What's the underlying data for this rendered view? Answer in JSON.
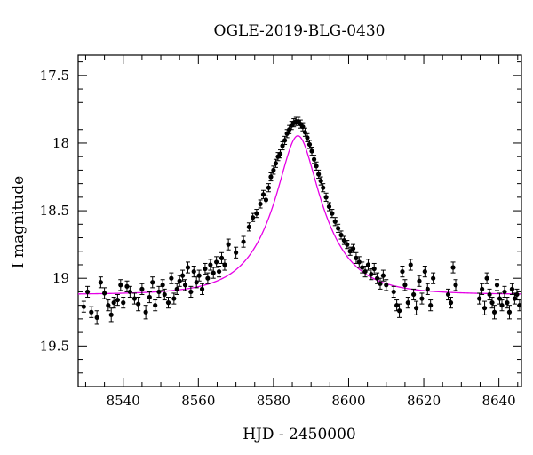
{
  "chart_data": {
    "type": "scatter",
    "title": "OGLE-2019-BLG-0430",
    "xlabel": "HJD - 2450000",
    "ylabel": "I magnitude",
    "xlim": [
      8528,
      8646
    ],
    "ylim": [
      19.8,
      17.35
    ],
    "y_inverted": true,
    "grid": false,
    "xticks": [
      8540,
      8560,
      8580,
      8600,
      8620,
      8640
    ],
    "yticks": [
      17.5,
      18,
      18.5,
      19,
      19.5
    ],
    "xtick_labels": [
      "8540",
      "8560",
      "8580",
      "8600",
      "8620",
      "8640"
    ],
    "ytick_labels": [
      "17.5",
      "18",
      "18.5",
      "19",
      "19.5"
    ],
    "model": {
      "name": "",
      "color": "#e600e6",
      "t0": 8586.5,
      "tE": 13.0,
      "u0": 0.355,
      "baseline_mag": 19.12
    },
    "series": [
      {
        "name": "",
        "color": "#000000",
        "points": [
          [
            8529.5,
            19.21,
            0.04
          ],
          [
            8530.5,
            19.1,
            0.04
          ],
          [
            8531.5,
            19.25,
            0.04
          ],
          [
            8533.0,
            19.29,
            0.05
          ],
          [
            8534.0,
            19.03,
            0.04
          ],
          [
            8535.0,
            19.11,
            0.04
          ],
          [
            8536.0,
            19.2,
            0.04
          ],
          [
            8536.8,
            19.27,
            0.05
          ],
          [
            8537.5,
            19.18,
            0.04
          ],
          [
            8538.5,
            19.16,
            0.04
          ],
          [
            8539.3,
            19.05,
            0.04
          ],
          [
            8540.0,
            19.18,
            0.04
          ],
          [
            8541.0,
            19.06,
            0.04
          ],
          [
            8541.8,
            19.1,
            0.04
          ],
          [
            8543.0,
            19.15,
            0.04
          ],
          [
            8544.0,
            19.19,
            0.05
          ],
          [
            8545.0,
            19.08,
            0.04
          ],
          [
            8546.0,
            19.25,
            0.05
          ],
          [
            8547.0,
            19.14,
            0.04
          ],
          [
            8547.8,
            19.03,
            0.04
          ],
          [
            8548.5,
            19.2,
            0.04
          ],
          [
            8549.5,
            19.1,
            0.04
          ],
          [
            8550.5,
            19.05,
            0.04
          ],
          [
            8551.0,
            19.12,
            0.04
          ],
          [
            8552.0,
            19.18,
            0.04
          ],
          [
            8552.8,
            19.0,
            0.04
          ],
          [
            8553.5,
            19.15,
            0.04
          ],
          [
            8554.3,
            19.08,
            0.04
          ],
          [
            8555.0,
            19.02,
            0.04
          ],
          [
            8555.8,
            18.98,
            0.04
          ],
          [
            8556.5,
            19.05,
            0.04
          ],
          [
            8557.2,
            18.92,
            0.04
          ],
          [
            8558.0,
            19.1,
            0.04
          ],
          [
            8558.8,
            18.95,
            0.04
          ],
          [
            8559.5,
            19.03,
            0.04
          ],
          [
            8560.2,
            18.98,
            0.04
          ],
          [
            8561.0,
            19.08,
            0.04
          ],
          [
            8561.8,
            18.93,
            0.04
          ],
          [
            8562.5,
            19.0,
            0.04
          ],
          [
            8563.2,
            18.9,
            0.04
          ],
          [
            8564.0,
            18.96,
            0.04
          ],
          [
            8564.8,
            18.88,
            0.04
          ],
          [
            8565.5,
            18.95,
            0.04
          ],
          [
            8566.2,
            18.85,
            0.04
          ],
          [
            8567.0,
            18.9,
            0.04
          ],
          [
            8568.0,
            18.75,
            0.04
          ],
          [
            8570.0,
            18.81,
            0.04
          ],
          [
            8572.0,
            18.73,
            0.04
          ],
          [
            8573.5,
            18.62,
            0.03
          ],
          [
            8574.5,
            18.55,
            0.03
          ],
          [
            8575.5,
            18.52,
            0.03
          ],
          [
            8576.5,
            18.45,
            0.03
          ],
          [
            8577.3,
            18.38,
            0.03
          ],
          [
            8578.0,
            18.42,
            0.03
          ],
          [
            8578.7,
            18.33,
            0.03
          ],
          [
            8579.3,
            18.25,
            0.03
          ],
          [
            8580.0,
            18.2,
            0.03
          ],
          [
            8580.6,
            18.15,
            0.03
          ],
          [
            8581.2,
            18.1,
            0.03
          ],
          [
            8581.8,
            18.08,
            0.03
          ],
          [
            8582.4,
            18.02,
            0.03
          ],
          [
            8583.0,
            17.98,
            0.03
          ],
          [
            8583.6,
            17.93,
            0.03
          ],
          [
            8584.2,
            17.9,
            0.03
          ],
          [
            8584.8,
            17.87,
            0.03
          ],
          [
            8585.4,
            17.85,
            0.03
          ],
          [
            8586.0,
            17.84,
            0.03
          ],
          [
            8586.6,
            17.84,
            0.03
          ],
          [
            8587.2,
            17.86,
            0.03
          ],
          [
            8587.8,
            17.88,
            0.03
          ],
          [
            8588.4,
            17.92,
            0.03
          ],
          [
            8589.0,
            17.96,
            0.03
          ],
          [
            8589.6,
            18.01,
            0.03
          ],
          [
            8590.2,
            18.06,
            0.03
          ],
          [
            8590.8,
            18.12,
            0.03
          ],
          [
            8591.4,
            18.17,
            0.03
          ],
          [
            8592.0,
            18.23,
            0.03
          ],
          [
            8592.6,
            18.28,
            0.03
          ],
          [
            8593.2,
            18.33,
            0.03
          ],
          [
            8594.0,
            18.4,
            0.03
          ],
          [
            8594.8,
            18.47,
            0.03
          ],
          [
            8595.6,
            18.52,
            0.03
          ],
          [
            8596.4,
            18.58,
            0.03
          ],
          [
            8597.2,
            18.63,
            0.03
          ],
          [
            8598.0,
            18.68,
            0.03
          ],
          [
            8598.8,
            18.72,
            0.03
          ],
          [
            8599.6,
            18.75,
            0.03
          ],
          [
            8600.4,
            18.8,
            0.03
          ],
          [
            8601.2,
            18.78,
            0.03
          ],
          [
            8602.0,
            18.85,
            0.04
          ],
          [
            8602.8,
            18.88,
            0.04
          ],
          [
            8603.6,
            18.92,
            0.04
          ],
          [
            8604.4,
            18.95,
            0.04
          ],
          [
            8605.2,
            18.9,
            0.04
          ],
          [
            8606.0,
            18.97,
            0.04
          ],
          [
            8606.8,
            18.93,
            0.04
          ],
          [
            8607.6,
            19.0,
            0.04
          ],
          [
            8608.4,
            19.04,
            0.04
          ],
          [
            8609.2,
            18.98,
            0.04
          ],
          [
            8610.0,
            19.05,
            0.04
          ],
          [
            8612.0,
            19.1,
            0.04
          ],
          [
            8612.8,
            19.2,
            0.04
          ],
          [
            8613.5,
            19.24,
            0.05
          ],
          [
            8614.3,
            18.95,
            0.04
          ],
          [
            8615.0,
            19.05,
            0.04
          ],
          [
            8615.8,
            19.18,
            0.04
          ],
          [
            8616.5,
            18.9,
            0.04
          ],
          [
            8617.3,
            19.12,
            0.04
          ],
          [
            8618.0,
            19.22,
            0.05
          ],
          [
            8618.8,
            19.02,
            0.04
          ],
          [
            8619.5,
            19.15,
            0.04
          ],
          [
            8620.3,
            18.95,
            0.04
          ],
          [
            8621.0,
            19.08,
            0.04
          ],
          [
            8621.8,
            19.2,
            0.04
          ],
          [
            8622.5,
            19.0,
            0.04
          ],
          [
            8626.5,
            19.12,
            0.04
          ],
          [
            8627.2,
            19.18,
            0.04
          ],
          [
            8627.8,
            18.92,
            0.04
          ],
          [
            8628.5,
            19.05,
            0.04
          ],
          [
            8634.8,
            19.15,
            0.04
          ],
          [
            8635.5,
            19.08,
            0.04
          ],
          [
            8636.2,
            19.22,
            0.05
          ],
          [
            8636.8,
            19.0,
            0.04
          ],
          [
            8637.5,
            19.12,
            0.04
          ],
          [
            8638.2,
            19.18,
            0.04
          ],
          [
            8638.8,
            19.25,
            0.05
          ],
          [
            8639.5,
            19.05,
            0.04
          ],
          [
            8640.2,
            19.15,
            0.04
          ],
          [
            8640.8,
            19.2,
            0.04
          ],
          [
            8641.5,
            19.1,
            0.04
          ],
          [
            8642.2,
            19.18,
            0.04
          ],
          [
            8642.8,
            19.25,
            0.05
          ],
          [
            8643.5,
            19.08,
            0.04
          ],
          [
            8644.2,
            19.15,
            0.04
          ],
          [
            8644.8,
            19.12,
            0.04
          ],
          [
            8645.5,
            19.2,
            0.04
          ]
        ]
      }
    ]
  }
}
